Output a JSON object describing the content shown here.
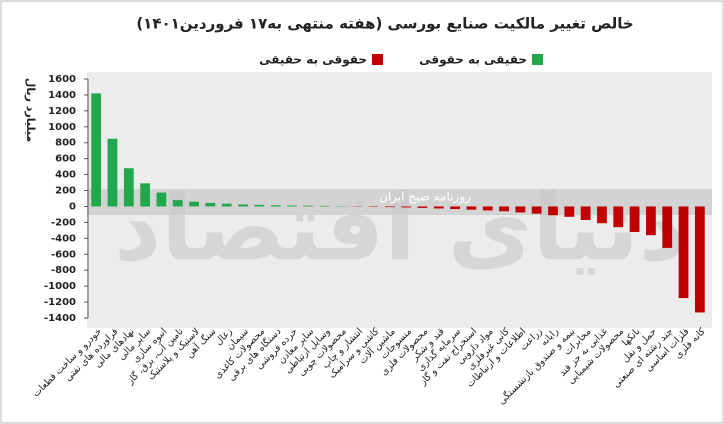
{
  "chart_data": {
    "type": "bar",
    "title": "خالص تغییر مالکیت صنایع بورسی (هفته منتهی به۱۷ فروردین۱۴۰۱)",
    "y_label": "میلیارد ریال",
    "watermark": "دنیای اقتصاد",
    "watermark_sub": "روزنامه صبح ایران",
    "legend": [
      {
        "name": "حقوقی به حقیقی",
        "color": "#c00000"
      },
      {
        "name": "حقیقی به حقوقی",
        "color": "#21a84a"
      }
    ],
    "categories": [
      "خودرو و ساخت قطعات",
      "فراورده های نفتی",
      "نهادهای مالی",
      "سایر مالی",
      "انبوه سازی",
      "تامین آب، برق، گاز",
      "لاستیک و پلاستیک",
      "سنگ آهن",
      "زغال",
      "سیمان",
      "محصولات کاغذی",
      "دستگاه های برقی",
      "خرده فروشی",
      "سایر معادن",
      "وسایل ارتباطی",
      "محصولات چوبی",
      "انتشار و چاپ",
      "کاشی و سرامیک",
      "ماشین آلات",
      "منسوجات",
      "محصولات فلزی",
      "قند و شکر",
      "سرمایه گذاری",
      "استخراج نفت و گاز",
      "مواد دارویی",
      "کانی غیرفلزی",
      "اطلاعات و ارتباطات",
      "زراعت",
      "رایانه",
      "بیمه و صندوق بازنشستگی",
      "مخابرات",
      "غذایی به جز قند",
      "محصولات شیمیایی",
      "بانکها",
      "حمل و نقل",
      "چند رشته ای صنعتی",
      "فلزات اساسی",
      "کانه فلزی"
    ],
    "values": [
      1420,
      850,
      480,
      290,
      175,
      80,
      60,
      45,
      35,
      25,
      20,
      15,
      12,
      10,
      8,
      4,
      -3,
      -5,
      -8,
      -12,
      -18,
      -25,
      -32,
      -40,
      -50,
      -60,
      -75,
      -90,
      -110,
      -130,
      -170,
      -210,
      -260,
      -320,
      -360,
      -520,
      -1150,
      -1330
    ],
    "ylim": [
      -1400,
      1600
    ],
    "yticks": [
      1600,
      1400,
      1200,
      1000,
      800,
      600,
      400,
      200,
      0,
      -200,
      -400,
      -600,
      -800,
      -1000,
      -1200,
      -1400
    ],
    "grid": false
  }
}
